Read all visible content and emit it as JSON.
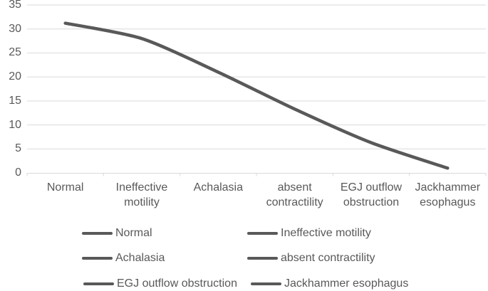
{
  "colors": {
    "series_line": "#595959",
    "grid_line": "#d9d9d9",
    "axis_line": "#d9d9d9",
    "text": "#595959",
    "background": "#ffffff"
  },
  "chart_data": {
    "type": "line",
    "title": "",
    "xlabel": "",
    "ylabel": "",
    "categories": [
      "Normal",
      "Ineffective motility",
      "Achalasia",
      "absent contractility",
      "EGJ outflow obstruction",
      "Jackhammer esophagus"
    ],
    "values": [
      31.2,
      28,
      21,
      13.3,
      6.3,
      1
    ],
    "ylim": [
      0,
      35
    ],
    "yticks": [
      0,
      5,
      10,
      15,
      20,
      25,
      30,
      35
    ],
    "grid": true,
    "smooth": true,
    "legend": {
      "position": "bottom",
      "columns": 2,
      "entries": [
        "Normal",
        "Ineffective motility",
        "Achalasia",
        "absent contractility",
        "EGJ outflow obstruction",
        "Jackhammer esophagus"
      ]
    }
  }
}
